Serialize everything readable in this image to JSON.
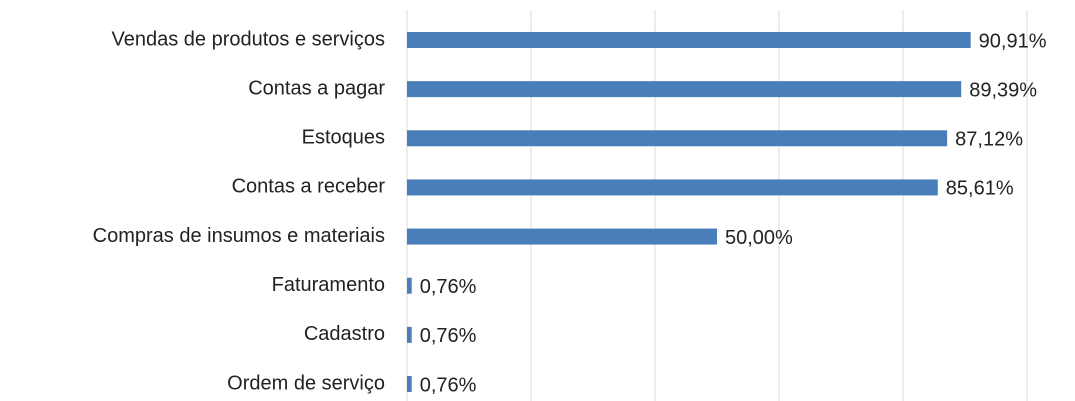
{
  "chart_data": {
    "type": "bar",
    "orientation": "horizontal",
    "categories": [
      "Vendas de produtos e serviços",
      "Contas a pagar",
      "Estoques",
      "Contas a receber",
      "Compras de insumos e materiais",
      "Faturamento",
      "Cadastro",
      "Ordem de serviço"
    ],
    "values": [
      90.91,
      89.39,
      87.12,
      85.61,
      50.0,
      0.76,
      0.76,
      0.76
    ],
    "value_labels": [
      "90,91%",
      "89,39%",
      "87,12%",
      "85,61%",
      "50,00%",
      "0,76%",
      "0,76%",
      "0,76%"
    ],
    "color": "#4a7ebb",
    "xlim": [
      0,
      100
    ],
    "xticks": [
      0,
      20,
      40,
      60,
      80,
      100
    ],
    "grid": true
  }
}
